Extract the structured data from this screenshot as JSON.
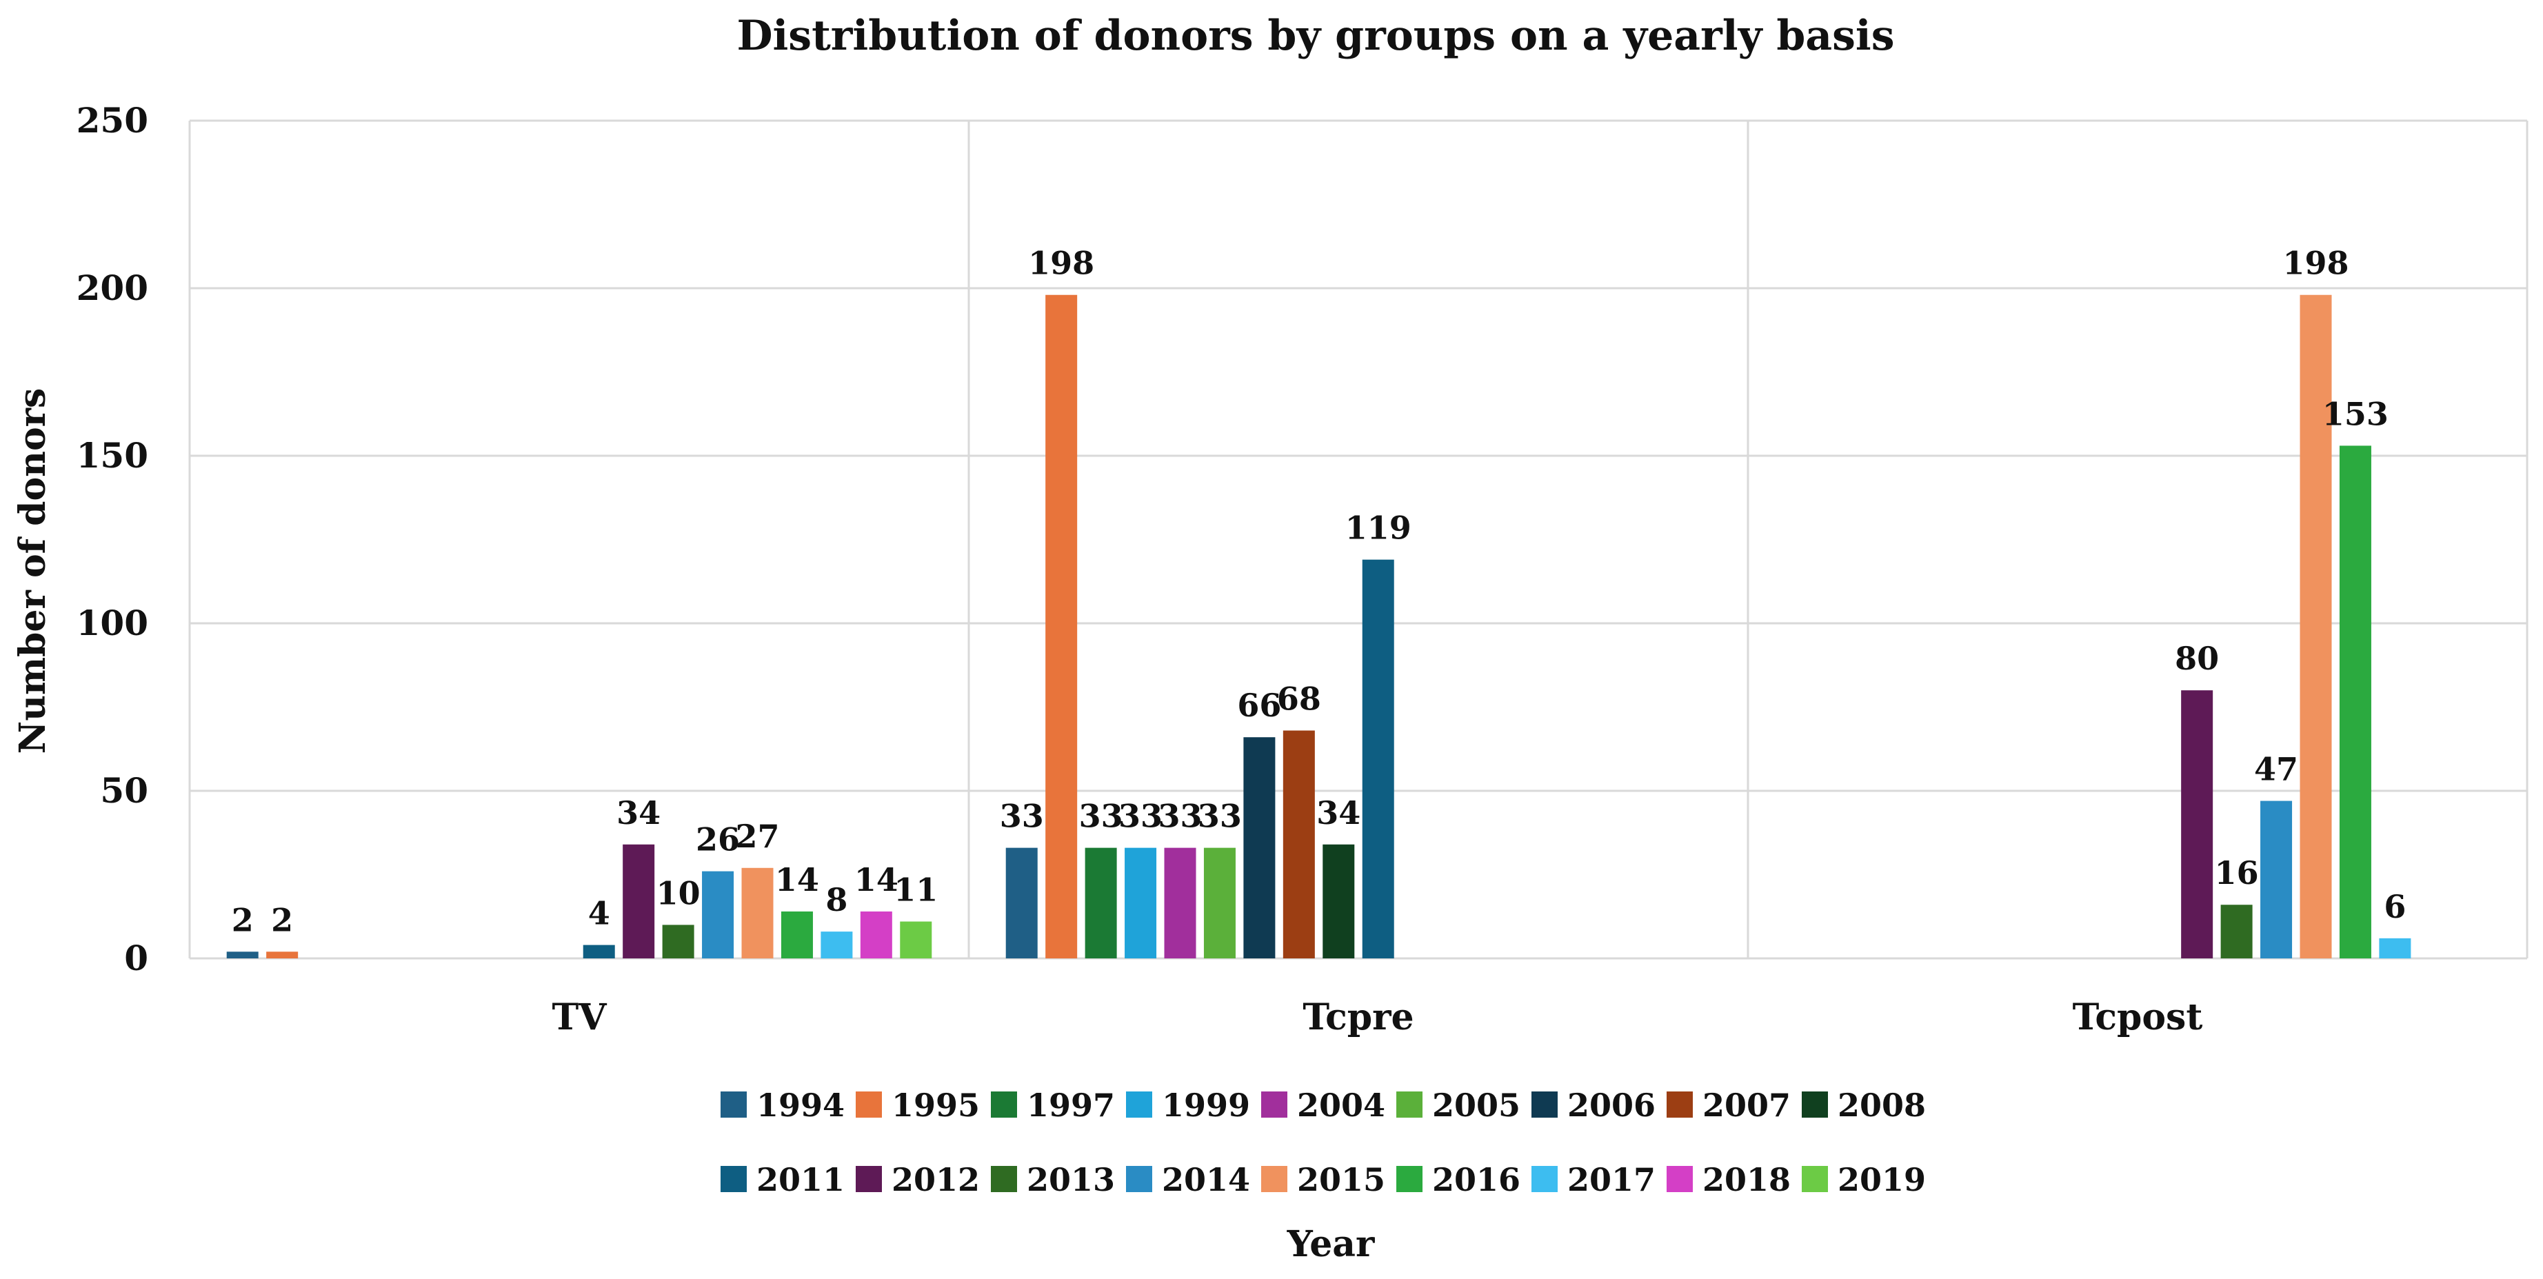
{
  "chart_data": {
    "type": "bar",
    "title": "Distribution of donors by groups on a yearly basis",
    "xlabel": "Year",
    "ylabel": "Number of donors",
    "ylim": [
      0,
      250
    ],
    "yticks": [
      0,
      50,
      100,
      150,
      200,
      250
    ],
    "grid": true,
    "legend": "bottom",
    "categories": [
      "TV",
      "Tcpre",
      "Tcpost"
    ],
    "series": [
      {
        "name": "1994",
        "color": "#1F5F86",
        "values": [
          2,
          33,
          null
        ]
      },
      {
        "name": "1995",
        "color": "#E8743B",
        "values": [
          2,
          198,
          null
        ]
      },
      {
        "name": "1997",
        "color": "#1B7A34",
        "values": [
          null,
          33,
          null
        ]
      },
      {
        "name": "1999",
        "color": "#1FA3D9",
        "values": [
          null,
          33,
          null
        ]
      },
      {
        "name": "2004",
        "color": "#A12F9C",
        "values": [
          null,
          33,
          null
        ]
      },
      {
        "name": "2005",
        "color": "#5BB03A",
        "values": [
          null,
          33,
          null
        ]
      },
      {
        "name": "2006",
        "color": "#0F3A52",
        "values": [
          null,
          66,
          null
        ]
      },
      {
        "name": "2007",
        "color": "#9C3E13",
        "values": [
          null,
          68,
          null
        ]
      },
      {
        "name": "2008",
        "color": "#10401F",
        "values": [
          null,
          34,
          null
        ]
      },
      {
        "name": "2011",
        "color": "#0E5E82",
        "values": [
          4,
          119,
          null
        ]
      },
      {
        "name": "2012",
        "color": "#5E1A56",
        "values": [
          34,
          null,
          80
        ]
      },
      {
        "name": "2013",
        "color": "#2F6B22",
        "values": [
          10,
          null,
          16
        ]
      },
      {
        "name": "2014",
        "color": "#2A8CC4",
        "values": [
          26,
          null,
          47
        ]
      },
      {
        "name": "2015",
        "color": "#F0925E",
        "values": [
          27,
          null,
          198
        ]
      },
      {
        "name": "2016",
        "color": "#2BAA3F",
        "values": [
          14,
          null,
          153
        ]
      },
      {
        "name": "2017",
        "color": "#3DBDF0",
        "values": [
          8,
          null,
          6
        ]
      },
      {
        "name": "2018",
        "color": "#D43FC6",
        "values": [
          14,
          null,
          null
        ]
      },
      {
        "name": "2019",
        "color": "#6CCB45",
        "values": [
          11,
          null,
          null
        ]
      }
    ]
  }
}
